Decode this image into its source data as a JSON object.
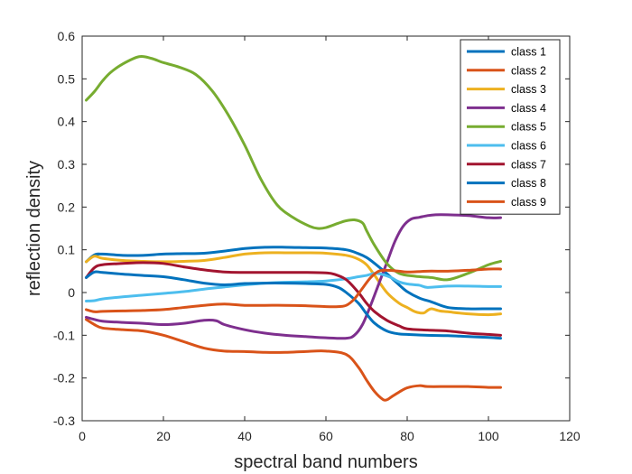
{
  "chart_data": {
    "type": "line",
    "title": "",
    "xlabel": "spectral band numbers",
    "ylabel": "reflection density",
    "xlim": [
      0,
      120
    ],
    "ylim": [
      -0.3,
      0.6
    ],
    "xticks": [
      "0",
      "20",
      "40",
      "60",
      "80",
      "100",
      "120"
    ],
    "yticks": [
      "-0.3",
      "-0.2",
      "-0.1",
      "0",
      "0.1",
      "0.2",
      "0.3",
      "0.4",
      "0.5",
      "0.6"
    ],
    "grid": false,
    "legend_position": "top-right",
    "series": [
      {
        "name": "class 1",
        "color": "#0072BD",
        "x": [
          1,
          3,
          5,
          10,
          15,
          20,
          25,
          30,
          35,
          40,
          45,
          50,
          55,
          60,
          65,
          68,
          70,
          72,
          75,
          78,
          80,
          83,
          86,
          90,
          95,
          100,
          103
        ],
        "y": [
          0.072,
          0.088,
          0.09,
          0.087,
          0.087,
          0.09,
          0.091,
          0.092,
          0.097,
          0.103,
          0.106,
          0.106,
          0.105,
          0.104,
          0.1,
          0.091,
          0.082,
          0.068,
          0.044,
          0.018,
          0.002,
          -0.013,
          -0.022,
          -0.035,
          -0.038,
          -0.038,
          -0.038
        ]
      },
      {
        "name": "class 2",
        "color": "#D95319",
        "x": [
          1,
          3,
          5,
          10,
          15,
          20,
          25,
          30,
          35,
          40,
          45,
          50,
          55,
          60,
          65,
          68,
          70,
          72,
          74,
          75,
          76,
          78,
          80,
          83,
          85,
          90,
          95,
          100,
          103
        ],
        "y": [
          -0.063,
          -0.075,
          -0.083,
          -0.087,
          -0.09,
          -0.1,
          -0.115,
          -0.13,
          -0.137,
          -0.138,
          -0.14,
          -0.14,
          -0.138,
          -0.137,
          -0.145,
          -0.175,
          -0.205,
          -0.232,
          -0.25,
          -0.251,
          -0.245,
          -0.233,
          -0.223,
          -0.218,
          -0.22,
          -0.22,
          -0.22,
          -0.222,
          -0.222
        ]
      },
      {
        "name": "class 3",
        "color": "#EDB120",
        "x": [
          1,
          3,
          5,
          10,
          15,
          20,
          25,
          30,
          35,
          40,
          45,
          50,
          55,
          60,
          65,
          68,
          70,
          72,
          75,
          78,
          80,
          82,
          84,
          85,
          86,
          88,
          90,
          95,
          100,
          103
        ],
        "y": [
          0.072,
          0.085,
          0.08,
          0.075,
          0.073,
          0.072,
          0.073,
          0.075,
          0.082,
          0.09,
          0.093,
          0.093,
          0.093,
          0.092,
          0.087,
          0.078,
          0.065,
          0.04,
          0.0,
          -0.025,
          -0.035,
          -0.045,
          -0.048,
          -0.042,
          -0.038,
          -0.043,
          -0.045,
          -0.05,
          -0.052,
          -0.05
        ]
      },
      {
        "name": "class 4",
        "color": "#7E2F8E",
        "x": [
          1,
          3,
          5,
          10,
          15,
          20,
          25,
          30,
          33,
          35,
          40,
          45,
          50,
          55,
          60,
          65,
          67,
          69,
          71,
          73,
          75,
          77,
          79,
          81,
          83,
          85,
          87,
          90,
          95,
          100,
          103
        ],
        "y": [
          -0.058,
          -0.063,
          -0.067,
          -0.07,
          -0.072,
          -0.075,
          -0.072,
          -0.065,
          -0.066,
          -0.075,
          -0.087,
          -0.095,
          -0.1,
          -0.103,
          -0.106,
          -0.107,
          -0.1,
          -0.075,
          -0.03,
          0.02,
          0.07,
          0.12,
          0.155,
          0.172,
          0.176,
          0.18,
          0.182,
          0.182,
          0.18,
          0.175,
          0.175
        ]
      },
      {
        "name": "class 5",
        "color": "#77AC30",
        "x": [
          1,
          3,
          5,
          7,
          10,
          14,
          17,
          20,
          24,
          28,
          32,
          36,
          40,
          44,
          48,
          52,
          56,
          58,
          60,
          63,
          65,
          67,
          69,
          70,
          72,
          75,
          78,
          82,
          86,
          90,
          95,
          100,
          103
        ],
        "y": [
          0.45,
          0.47,
          0.495,
          0.515,
          0.535,
          0.552,
          0.548,
          0.538,
          0.527,
          0.51,
          0.472,
          0.415,
          0.345,
          0.265,
          0.205,
          0.175,
          0.155,
          0.15,
          0.152,
          0.162,
          0.168,
          0.17,
          0.163,
          0.145,
          0.11,
          0.068,
          0.045,
          0.038,
          0.035,
          0.03,
          0.045,
          0.065,
          0.073
        ]
      },
      {
        "name": "class 6",
        "color": "#4DBEEE",
        "x": [
          1,
          3,
          5,
          10,
          15,
          20,
          25,
          30,
          35,
          40,
          45,
          50,
          55,
          60,
          65,
          68,
          70,
          72,
          74,
          76,
          78,
          80,
          83,
          85,
          90,
          95,
          100,
          103
        ],
        "y": [
          -0.02,
          -0.019,
          -0.015,
          -0.01,
          -0.006,
          -0.002,
          0.002,
          0.008,
          0.013,
          0.018,
          0.022,
          0.024,
          0.025,
          0.027,
          0.032,
          0.037,
          0.04,
          0.045,
          0.042,
          0.035,
          0.025,
          0.02,
          0.017,
          0.012,
          0.015,
          0.015,
          0.014,
          0.014
        ]
      },
      {
        "name": "class 7",
        "color": "#A2142F",
        "x": [
          1,
          3,
          5,
          10,
          15,
          20,
          25,
          30,
          35,
          40,
          45,
          50,
          55,
          60,
          62,
          65,
          68,
          70,
          72,
          75,
          78,
          80,
          85,
          90,
          95,
          100,
          103
        ],
        "y": [
          0.035,
          0.058,
          0.065,
          0.068,
          0.07,
          0.068,
          0.06,
          0.053,
          0.048,
          0.047,
          0.047,
          0.047,
          0.047,
          0.046,
          0.043,
          0.03,
          0.0,
          -0.025,
          -0.045,
          -0.065,
          -0.078,
          -0.085,
          -0.088,
          -0.09,
          -0.095,
          -0.098,
          -0.1
        ]
      },
      {
        "name": "class 8",
        "color": "#0072BD",
        "x": [
          1,
          3,
          5,
          10,
          15,
          20,
          25,
          30,
          35,
          40,
          45,
          50,
          55,
          60,
          63,
          65,
          68,
          70,
          72,
          75,
          78,
          80,
          85,
          90,
          95,
          100,
          103
        ],
        "y": [
          0.035,
          0.048,
          0.047,
          0.043,
          0.04,
          0.037,
          0.03,
          0.022,
          0.018,
          0.021,
          0.022,
          0.022,
          0.021,
          0.019,
          0.012,
          0.0,
          -0.025,
          -0.05,
          -0.072,
          -0.09,
          -0.097,
          -0.098,
          -0.1,
          -0.101,
          -0.103,
          -0.105,
          -0.107
        ]
      },
      {
        "name": "class 9",
        "color": "#D95319",
        "x": [
          1,
          3,
          5,
          10,
          15,
          20,
          25,
          30,
          35,
          40,
          45,
          50,
          55,
          60,
          63,
          65,
          67,
          69,
          71,
          73,
          75,
          78,
          80,
          85,
          90,
          95,
          100,
          103
        ],
        "y": [
          -0.04,
          -0.045,
          -0.044,
          -0.043,
          -0.042,
          -0.04,
          -0.035,
          -0.03,
          -0.027,
          -0.03,
          -0.03,
          -0.03,
          -0.031,
          -0.033,
          -0.033,
          -0.03,
          -0.015,
          0.01,
          0.035,
          0.05,
          0.052,
          0.05,
          0.048,
          0.05,
          0.05,
          0.052,
          0.055,
          0.055
        ]
      }
    ]
  }
}
